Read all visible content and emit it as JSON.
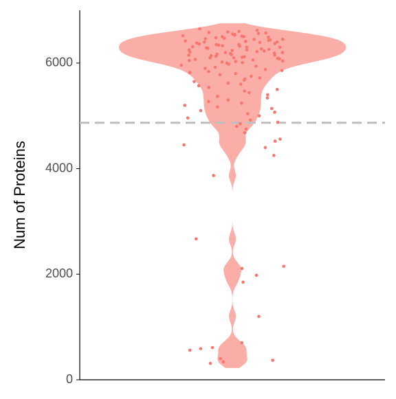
{
  "chart_data": {
    "type": "violin",
    "y_label": "Num of Proteins",
    "ylim": [
      0,
      7000
    ],
    "yticks": [
      0,
      2000,
      4000,
      6000
    ],
    "hline": 4870,
    "color": "#f8766d",
    "violin_color": "#fbaea8",
    "hline_color": "#bebebe",
    "values": [
      6650,
      6620,
      6600,
      6590,
      6580,
      6570,
      6560,
      6550,
      6540,
      6530,
      6520,
      6510,
      6500,
      6500,
      6490,
      6480,
      6470,
      6460,
      6450,
      6450,
      6440,
      6430,
      6420,
      6410,
      6400,
      6400,
      6390,
      6380,
      6370,
      6360,
      6350,
      6350,
      6340,
      6330,
      6320,
      6310,
      6300,
      6300,
      6290,
      6280,
      6270,
      6260,
      6250,
      6250,
      6240,
      6230,
      6220,
      6210,
      6200,
      6200,
      6190,
      6180,
      6170,
      6160,
      6150,
      6150,
      6140,
      6130,
      6120,
      6110,
      6100,
      6100,
      6090,
      6080,
      6070,
      6060,
      6050,
      6040,
      6030,
      6020,
      6010,
      6000,
      5980,
      5960,
      5940,
      5920,
      5900,
      5880,
      5860,
      5840,
      5820,
      5800,
      5780,
      5750,
      5720,
      5700,
      5680,
      5650,
      5620,
      5600,
      5570,
      5540,
      5500,
      5470,
      5440,
      5400,
      5370,
      5340,
      5300,
      5270,
      5240,
      5200,
      5170,
      5140,
      5100,
      5070,
      5040,
      5000,
      4960,
      4920,
      4880,
      4850,
      4800,
      4750,
      4680,
      4560,
      4520,
      4450,
      4400,
      4250,
      3870,
      2670,
      2150,
      2110,
      1980,
      1850,
      1200,
      700,
      610,
      590,
      560,
      400,
      370,
      340,
      310
    ]
  }
}
